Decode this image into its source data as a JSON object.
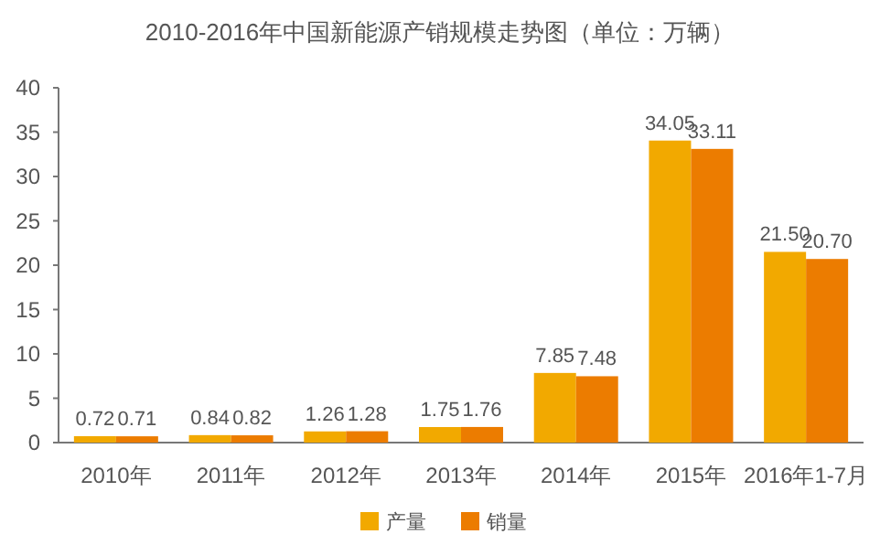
{
  "chart_data": {
    "type": "bar",
    "title": "2010-2016年中国新能源产销规模走势图（单位：万辆）",
    "categories": [
      "2010年",
      "2011年",
      "2012年",
      "2013年",
      "2014年",
      "2015年",
      "2016年1-7月"
    ],
    "series": [
      {
        "name": "产量",
        "color": "#f2a900",
        "values": [
          0.72,
          0.84,
          1.26,
          1.75,
          7.85,
          34.05,
          21.5
        ],
        "value_labels": [
          "0.72",
          "0.84",
          "1.26",
          "1.75",
          "7.85",
          "34.05",
          "21.50"
        ]
      },
      {
        "name": "销量",
        "color": "#ec7c00",
        "values": [
          0.71,
          0.82,
          1.28,
          1.76,
          7.48,
          33.11,
          20.7
        ],
        "value_labels": [
          "0.71",
          "0.82",
          "1.28",
          "1.76",
          "7.48",
          "33.11",
          "20.70"
        ]
      }
    ],
    "ylim": [
      0,
      40
    ],
    "yticks": [
      0,
      5,
      10,
      15,
      20,
      25,
      30,
      35,
      40
    ],
    "grid": false,
    "legend": "bottom"
  }
}
